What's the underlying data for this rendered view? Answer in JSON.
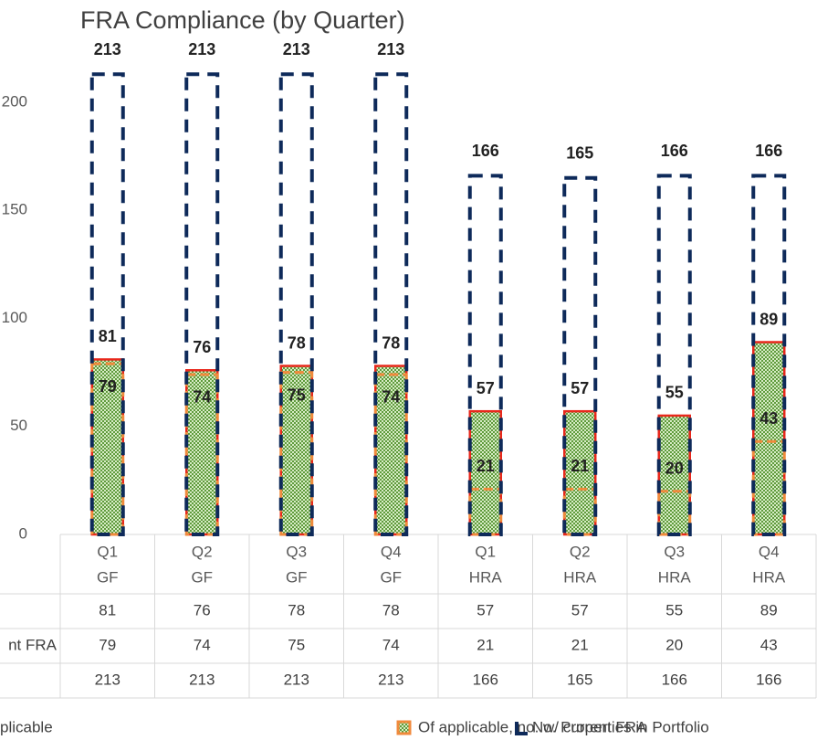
{
  "chart_data": {
    "type": "bar",
    "title": "FRA Compliance (by Quarter)",
    "categories": [
      [
        "Q1",
        "GF"
      ],
      [
        "Q2",
        "GF"
      ],
      [
        "Q3",
        "GF"
      ],
      [
        "Q4",
        "GF"
      ],
      [
        "Q1",
        "HRA"
      ],
      [
        "Q2",
        "HRA"
      ],
      [
        "Q3",
        "HRA"
      ],
      [
        "Q4",
        "HRA"
      ]
    ],
    "series": [
      {
        "name": "plicable",
        "table_label": null,
        "color": "#e8281c",
        "values": [
          81,
          76,
          78,
          78,
          57,
          57,
          55,
          89
        ]
      },
      {
        "name": "Of applicable, no. w/ current FRA",
        "table_label": "nt FRA",
        "color": "#f08a3c",
        "values": [
          79,
          74,
          75,
          74,
          21,
          21,
          20,
          43
        ]
      },
      {
        "name": "No. Properties in Portfolio",
        "table_label": null,
        "color": "#0e2a5a",
        "values": [
          213,
          213,
          213,
          213,
          166,
          165,
          166,
          166
        ]
      }
    ],
    "ylim": [
      0,
      200
    ],
    "yticks": [
      0,
      50,
      100,
      150,
      200
    ],
    "grid": false
  }
}
